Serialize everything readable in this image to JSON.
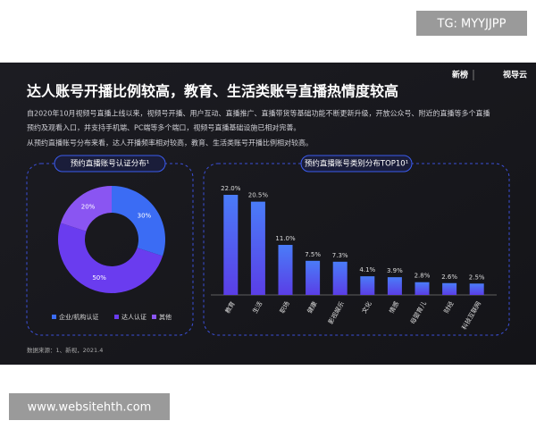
{
  "watermark": "TG: MYYJJPP",
  "footer_url": "www.websitehth.com",
  "slide": {
    "logos": [
      "新榜",
      "视导云"
    ],
    "title": "达人账号开播比例较高，教育、生活类账号直播热情度较高",
    "paragraphs": [
      "自2020年10月视频号直播上线以来，视频号开播、用户互动、直播推广、直播带货等基础功能不断更新升级，开放公众号、附近的直播等多个直播",
      "预约及观看入口，并支持手机端、PC端等多个端口，视频号直播基础设施已相对完善。",
      "从预约直播账号分布来看，达人开播频率相对较高，教育、生活类账号开播比例相对较高。"
    ],
    "source": "数据来源：1、新视，2021.4"
  },
  "chart_data": [
    {
      "type": "pie",
      "title": "预约直播账号认证分布¹",
      "categories": [
        "企业/机构认证",
        "达人认证",
        "其他"
      ],
      "values": [
        30,
        50,
        20
      ],
      "value_labels": [
        "30%",
        "50%",
        "20%"
      ],
      "colors": [
        "#3b6cf4",
        "#6a3cef",
        "#8a55f2"
      ],
      "donut": true
    },
    {
      "type": "bar",
      "title": "预约直播账号类别分布TOP10¹",
      "categories": [
        "教育",
        "生活",
        "职场",
        "健康",
        "影视娱乐",
        "文化",
        "情感",
        "母婴育儿",
        "财经",
        "科技互联网"
      ],
      "values": [
        22.0,
        20.5,
        11.0,
        7.5,
        7.3,
        4.1,
        3.9,
        2.8,
        2.6,
        2.5
      ],
      "value_labels": [
        "22.0%",
        "20.5%",
        "11.0%",
        "7.5%",
        "7.3%",
        "4.1%",
        "3.9%",
        "2.8%",
        "2.6%",
        "2.5%"
      ],
      "color": "#4a5cf2"
    }
  ]
}
